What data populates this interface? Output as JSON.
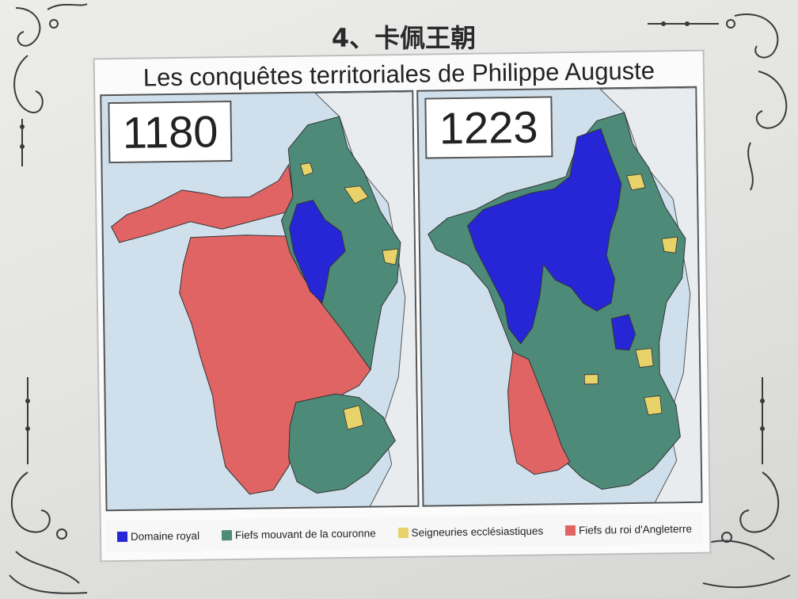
{
  "slide": {
    "title": "4、卡佩王朝"
  },
  "map": {
    "heading": "Les conquêtes territoriales de Philippe Auguste",
    "panels": [
      {
        "year": "1180"
      },
      {
        "year": "1223"
      }
    ],
    "legend": [
      {
        "label": "Domaine royal",
        "color": "#2626d6"
      },
      {
        "label": "Fiefs mouvant de la couronne",
        "color": "#4e8a78"
      },
      {
        "label": "Seigneuries ecclésiastiques",
        "color": "#e8d36a"
      },
      {
        "label": "Fiefs du roi d'Angleterre",
        "color": "#e06464"
      }
    ],
    "colors": {
      "sea": "#cfe0ec",
      "land_outside": "#e9ecef",
      "border_lines": "#333333"
    }
  }
}
